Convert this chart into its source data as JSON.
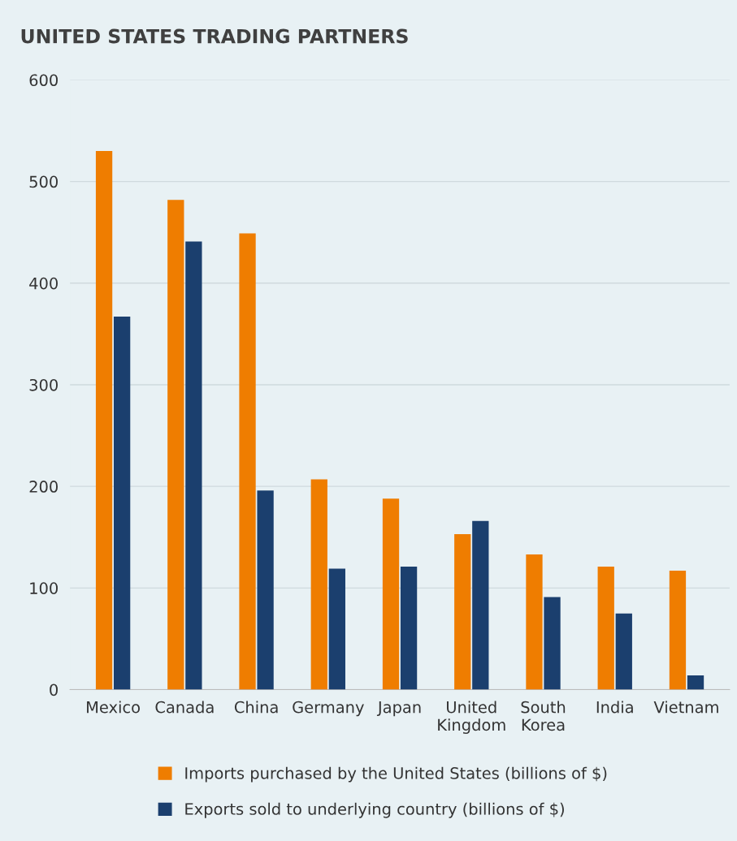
{
  "chart_data": {
    "type": "bar",
    "title": "UNITED STATES TRADING PARTNERS",
    "categories": [
      "Mexico",
      "Canada",
      "China",
      "Germany",
      "Japan",
      "United\nKingdom",
      "South\nKorea",
      "India",
      "Vietnam"
    ],
    "series": [
      {
        "name": "Imports purchased by the United States (billions of $)",
        "color": "#ef7d00",
        "values": [
          530,
          482,
          449,
          207,
          188,
          153,
          133,
          121,
          117
        ]
      },
      {
        "name": "Exports sold to underlying country (billions of $)",
        "color": "#1b3f6e",
        "values": [
          367,
          441,
          196,
          119,
          121,
          166,
          91,
          75,
          14
        ]
      }
    ],
    "ylim": [
      0,
      600
    ],
    "yticks": [
      0,
      100,
      200,
      300,
      400,
      500,
      600
    ],
    "grid": "y",
    "legend": "bottom"
  }
}
